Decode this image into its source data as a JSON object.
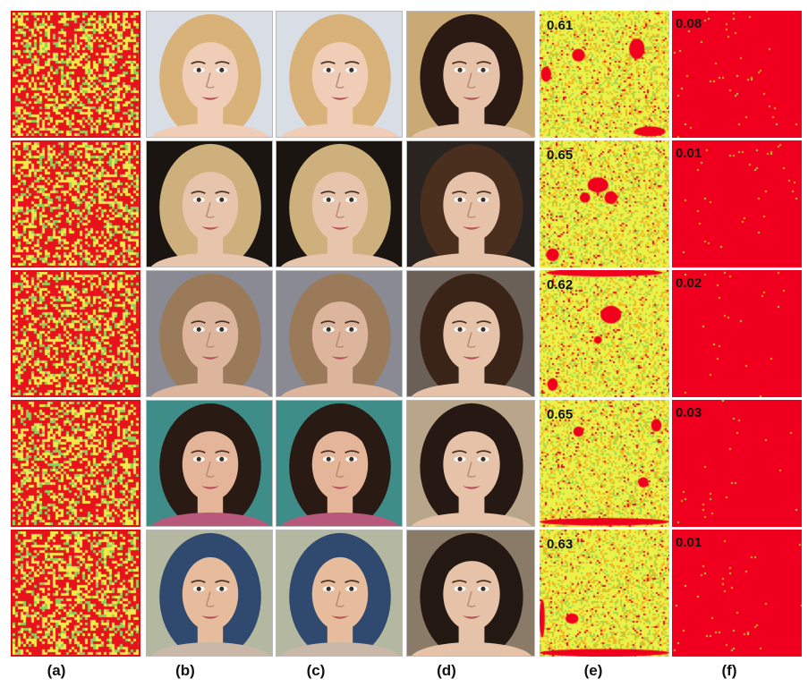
{
  "columns": [
    {
      "id": "a",
      "label": "(a)"
    },
    {
      "id": "b",
      "label": "(b)"
    },
    {
      "id": "c",
      "label": "(c)"
    },
    {
      "id": "d",
      "label": "(d)"
    },
    {
      "id": "e",
      "label": "(e)"
    },
    {
      "id": "f",
      "label": "(f)"
    }
  ],
  "rows": [
    {
      "e_value": "0.61",
      "f_value": "0.08",
      "hair": "#d9b27a",
      "skin": "#efcdb6",
      "bg": "#d8dde6",
      "d_hair": "#2b1a14",
      "d_bg": "#c9aa74"
    },
    {
      "e_value": "0.65",
      "f_value": "0.01",
      "hair": "#cdb07c",
      "skin": "#e7c4ac",
      "bg": "#1a1510",
      "d_hair": "#4a2e1e",
      "d_bg": "#2a2420"
    },
    {
      "e_value": "0.62",
      "f_value": "0.02",
      "hair": "#9a7a58",
      "skin": "#ddb59c",
      "bg": "#8a8a95",
      "d_hair": "#3a2418",
      "d_bg": "#6a6058"
    },
    {
      "e_value": "0.65",
      "f_value": "0.03",
      "hair": "#2a1a14",
      "skin": "#e4b598",
      "bg": "#3f8d88",
      "d_hair": "#261812",
      "d_bg": "#b8a58a"
    },
    {
      "e_value": "0.63",
      "f_value": "0.01",
      "hair": "#2f4a6e",
      "skin": "#e6bc9c",
      "bg": "#b4b8a0",
      "d_hair": "#241812",
      "d_bg": "#8a7a68"
    }
  ],
  "colors": {
    "noise_red": "#e8121c",
    "noise_yellow": "#f4e94a",
    "noise_green": "#8fcf5a",
    "map_yellow": "#eaf24a",
    "map_red": "#f0001e"
  }
}
